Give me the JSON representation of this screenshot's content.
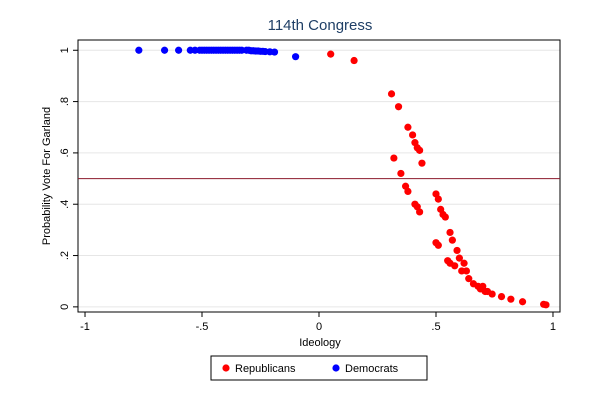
{
  "chart_data": {
    "type": "scatter",
    "title": "114th Congress",
    "xlabel": "Ideology",
    "ylabel": "Probability Vote For Garland",
    "xlim": [
      -1.03,
      1.03
    ],
    "ylim": [
      -0.02,
      1.04
    ],
    "xticks": [
      -1,
      -0.5,
      0,
      0.5,
      1
    ],
    "xtick_labels": [
      "-1",
      "-.5",
      "0",
      ".5",
      "1"
    ],
    "yticks": [
      0,
      0.2,
      0.4,
      0.6,
      0.8,
      1
    ],
    "ytick_labels": [
      "0",
      ".2",
      ".4",
      ".6",
      ".8",
      "1"
    ],
    "grid": "horizontal",
    "reference_line": {
      "y": 0.5,
      "color": "#8b1a2b"
    },
    "legend_position": "bottom",
    "series": [
      {
        "name": "Republicans",
        "color": "#ff0000",
        "points": [
          [
            0.05,
            0.985
          ],
          [
            0.15,
            0.96
          ],
          [
            0.31,
            0.83
          ],
          [
            0.34,
            0.78
          ],
          [
            0.38,
            0.7
          ],
          [
            0.4,
            0.67
          ],
          [
            0.41,
            0.64
          ],
          [
            0.42,
            0.62
          ],
          [
            0.43,
            0.61
          ],
          [
            0.44,
            0.56
          ],
          [
            0.32,
            0.58
          ],
          [
            0.35,
            0.52
          ],
          [
            0.37,
            0.47
          ],
          [
            0.38,
            0.45
          ],
          [
            0.41,
            0.4
          ],
          [
            0.42,
            0.39
          ],
          [
            0.43,
            0.37
          ],
          [
            0.5,
            0.44
          ],
          [
            0.51,
            0.42
          ],
          [
            0.52,
            0.38
          ],
          [
            0.53,
            0.36
          ],
          [
            0.54,
            0.35
          ],
          [
            0.56,
            0.29
          ],
          [
            0.57,
            0.26
          ],
          [
            0.5,
            0.25
          ],
          [
            0.51,
            0.24
          ],
          [
            0.59,
            0.22
          ],
          [
            0.6,
            0.19
          ],
          [
            0.62,
            0.17
          ],
          [
            0.55,
            0.18
          ],
          [
            0.56,
            0.17
          ],
          [
            0.58,
            0.16
          ],
          [
            0.61,
            0.14
          ],
          [
            0.63,
            0.14
          ],
          [
            0.64,
            0.11
          ],
          [
            0.66,
            0.09
          ],
          [
            0.68,
            0.08
          ],
          [
            0.7,
            0.08
          ],
          [
            0.69,
            0.07
          ],
          [
            0.71,
            0.06
          ],
          [
            0.72,
            0.06
          ],
          [
            0.74,
            0.05
          ],
          [
            0.78,
            0.04
          ],
          [
            0.82,
            0.03
          ],
          [
            0.87,
            0.02
          ],
          [
            0.96,
            0.01
          ],
          [
            0.97,
            0.008
          ]
        ]
      },
      {
        "name": "Democrats",
        "color": "#0000ff",
        "points": [
          [
            -0.77,
            1.0
          ],
          [
            -0.66,
            1.0
          ],
          [
            -0.6,
            1.0
          ],
          [
            -0.55,
            1.0
          ],
          [
            -0.53,
            1.0
          ],
          [
            -0.51,
            1.0
          ],
          [
            -0.5,
            1.0
          ],
          [
            -0.49,
            1.0
          ],
          [
            -0.48,
            1.0
          ],
          [
            -0.47,
            1.0
          ],
          [
            -0.46,
            1.0
          ],
          [
            -0.45,
            1.0
          ],
          [
            -0.44,
            1.0
          ],
          [
            -0.43,
            1.0
          ],
          [
            -0.42,
            1.0
          ],
          [
            -0.41,
            1.0
          ],
          [
            -0.4,
            1.0
          ],
          [
            -0.39,
            1.0
          ],
          [
            -0.38,
            1.0
          ],
          [
            -0.37,
            1.0
          ],
          [
            -0.36,
            1.0
          ],
          [
            -0.35,
            1.0
          ],
          [
            -0.34,
            1.0
          ],
          [
            -0.33,
            1.0
          ],
          [
            -0.31,
            1.0
          ],
          [
            -0.3,
            1.0
          ],
          [
            -0.29,
            0.998
          ],
          [
            -0.28,
            0.998
          ],
          [
            -0.27,
            0.997
          ],
          [
            -0.26,
            0.997
          ],
          [
            -0.25,
            0.996
          ],
          [
            -0.24,
            0.996
          ],
          [
            -0.23,
            0.995
          ],
          [
            -0.21,
            0.994
          ],
          [
            -0.19,
            0.993
          ],
          [
            -0.1,
            0.975
          ]
        ]
      }
    ]
  }
}
